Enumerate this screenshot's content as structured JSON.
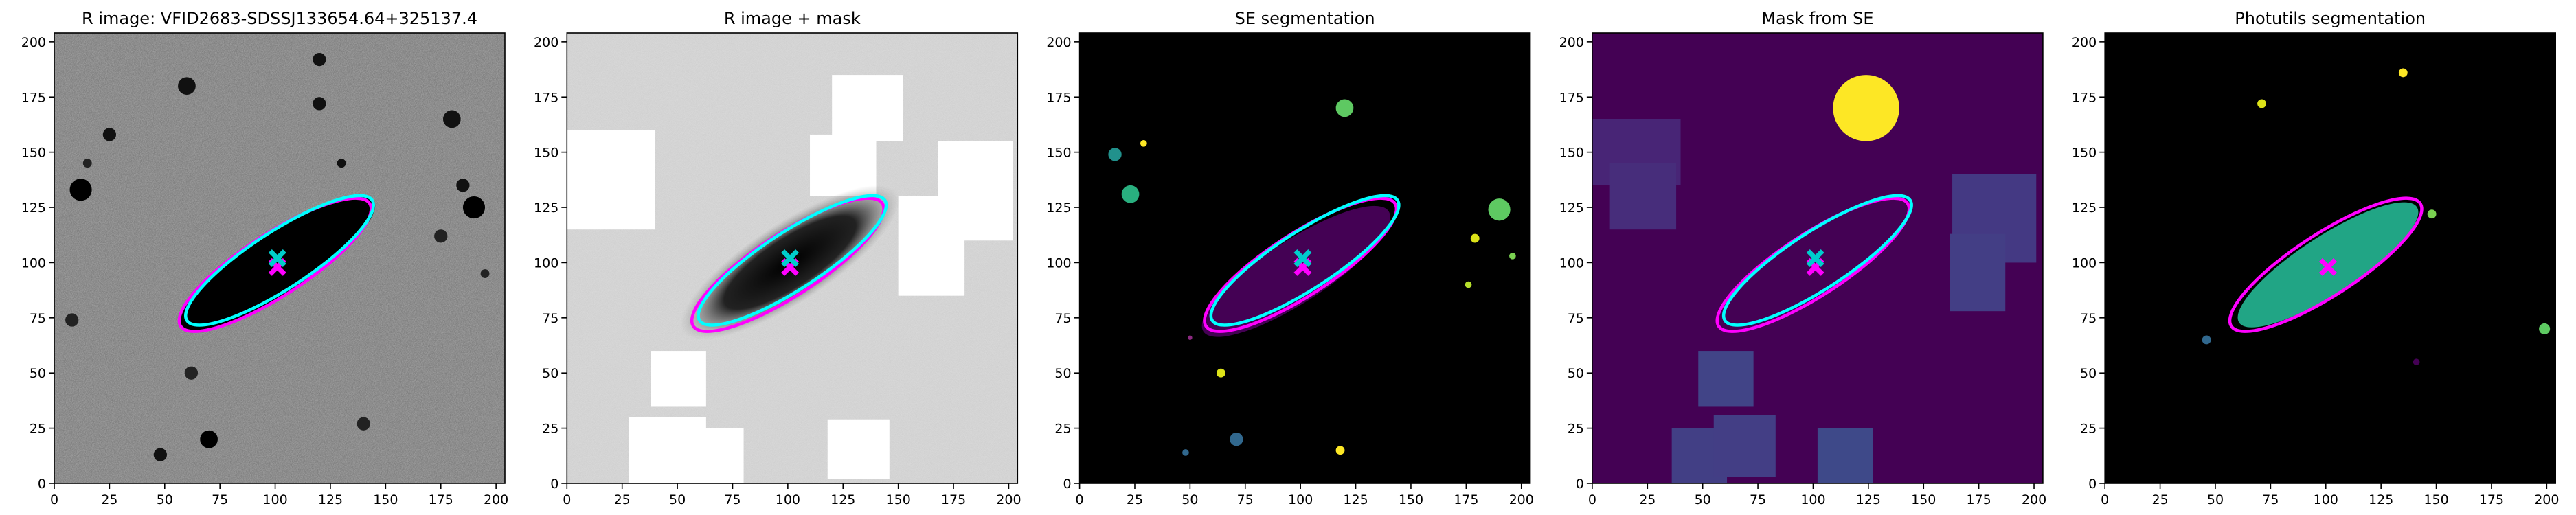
{
  "chart_data": [
    {
      "type": "image",
      "title": "R image: VFID2683-SDSSJ133654.64+325137.4",
      "xlim": [
        0,
        204
      ],
      "ylim": [
        0,
        204
      ],
      "xticks": [
        0,
        25,
        50,
        75,
        100,
        125,
        150,
        175,
        200
      ],
      "yticks": [
        0,
        25,
        50,
        75,
        100,
        125,
        150,
        175,
        200
      ],
      "ellipses": [
        {
          "color": "#ff00ff",
          "x": 100,
          "y": 99,
          "width": 102,
          "height": 28,
          "angle": 33
        },
        {
          "color": "#00ffff",
          "x": 102,
          "y": 101,
          "width": 100,
          "height": 26,
          "angle": 33
        }
      ],
      "markers": [
        {
          "color": "#ff00ff",
          "x": 101,
          "y": 98
        },
        {
          "color": "#00cccc",
          "x": 101,
          "y": 102
        }
      ]
    },
    {
      "type": "image",
      "title": "R image + mask",
      "xlim": [
        0,
        204
      ],
      "ylim": [
        0,
        204
      ],
      "xticks": [
        0,
        25,
        50,
        75,
        100,
        125,
        150,
        175,
        200
      ],
      "yticks": [
        0,
        25,
        50,
        75,
        100,
        125,
        150,
        175,
        200
      ],
      "ellipses": [
        {
          "color": "#ff00ff",
          "x": 100,
          "y": 99,
          "width": 102,
          "height": 28,
          "angle": 33
        },
        {
          "color": "#00ffff",
          "x": 102,
          "y": 101,
          "width": 100,
          "height": 26,
          "angle": 33
        }
      ],
      "markers": [
        {
          "color": "#ff00ff",
          "x": 101,
          "y": 98
        },
        {
          "color": "#00cccc",
          "x": 101,
          "y": 102
        }
      ]
    },
    {
      "type": "image",
      "title": "SE segmentation",
      "xlim": [
        0,
        204
      ],
      "ylim": [
        0,
        204
      ],
      "xticks": [
        0,
        25,
        50,
        75,
        100,
        125,
        150,
        175,
        200
      ],
      "yticks": [
        0,
        25,
        50,
        75,
        100,
        125,
        150,
        175,
        200
      ],
      "ellipses": [
        {
          "color": "#ff00ff",
          "x": 100,
          "y": 99,
          "width": 102,
          "height": 28,
          "angle": 33
        },
        {
          "color": "#00ffff",
          "x": 102,
          "y": 101,
          "width": 100,
          "height": 26,
          "angle": 33
        }
      ],
      "markers": [
        {
          "color": "#ff00ff",
          "x": 101,
          "y": 98
        },
        {
          "color": "#00cccc",
          "x": 101,
          "y": 102
        }
      ]
    },
    {
      "type": "image",
      "title": "Mask from SE",
      "xlim": [
        0,
        204
      ],
      "ylim": [
        0,
        204
      ],
      "xticks": [
        0,
        25,
        50,
        75,
        100,
        125,
        150,
        175,
        200
      ],
      "yticks": [
        0,
        25,
        50,
        75,
        100,
        125,
        150,
        175,
        200
      ],
      "ellipses": [
        {
          "color": "#ff00ff",
          "x": 100,
          "y": 99,
          "width": 102,
          "height": 28,
          "angle": 33
        },
        {
          "color": "#00ffff",
          "x": 102,
          "y": 101,
          "width": 100,
          "height": 26,
          "angle": 33
        }
      ],
      "markers": [
        {
          "color": "#ff00ff",
          "x": 101,
          "y": 98
        },
        {
          "color": "#00cccc",
          "x": 101,
          "y": 102
        }
      ]
    },
    {
      "type": "image",
      "title": "Photutils segmentation",
      "xlim": [
        0,
        204
      ],
      "ylim": [
        0,
        204
      ],
      "xticks": [
        0,
        25,
        50,
        75,
        100,
        125,
        150,
        175,
        200
      ],
      "yticks": [
        0,
        25,
        50,
        75,
        100,
        125,
        150,
        175,
        200
      ],
      "ellipses": [
        {
          "color": "#ff00ff",
          "x": 100,
          "y": 99,
          "width": 102,
          "height": 28,
          "angle": 33
        }
      ],
      "markers": [
        {
          "color": "#ff00ff",
          "x": 101,
          "y": 98
        }
      ]
    }
  ]
}
